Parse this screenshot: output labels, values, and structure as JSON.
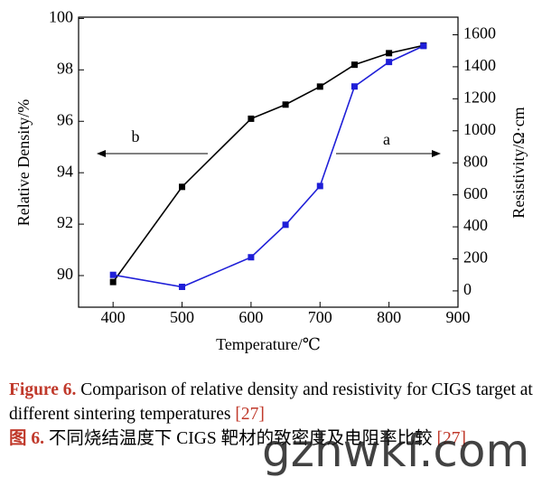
{
  "chart_data": {
    "type": "line",
    "x_label": "Temperature/℃",
    "y_label": "Relative Density/%",
    "y2_label": "Resistivity/Ω·cm",
    "xlim": [
      350,
      900
    ],
    "xticks": [
      400,
      500,
      600,
      700,
      800,
      900
    ],
    "ylim": [
      88.77,
      100.05
    ],
    "yticks": [
      90,
      92,
      94,
      96,
      98,
      100
    ],
    "y2lim": [
      -102,
      1710
    ],
    "y2ticks": [
      0,
      200,
      400,
      600,
      800,
      1000,
      1200,
      1400,
      1600
    ],
    "annotations": [
      "b",
      "a"
    ],
    "series": [
      {
        "name": "Relative Density",
        "color": "#000000",
        "axis": "y",
        "x": [
          400,
          500,
          600,
          650,
          700,
          750,
          800,
          850
        ],
        "values": [
          89.75,
          93.45,
          96.1,
          96.65,
          97.35,
          98.2,
          98.65,
          98.95
        ]
      },
      {
        "name": "Resistivity",
        "color": "#1f1fd8",
        "axis": "y2",
        "x": [
          400,
          500,
          600,
          650,
          700,
          750,
          800,
          850
        ],
        "values": [
          100,
          25,
          210,
          413,
          655,
          1277,
          1430,
          1530
        ]
      }
    ]
  },
  "caption": {
    "en_label": "Figure 6.",
    "en_text": "Comparison of relative density and resistivity for CIGS target at different sintering temperatures",
    "en_ref": "[27]",
    "zh_label": "图 6.",
    "zh_text": "不同烧结温度下 CIGS 靶材的致密度及电阻率比较",
    "zh_ref": "[27]"
  },
  "watermark": "gzhwkf.com"
}
